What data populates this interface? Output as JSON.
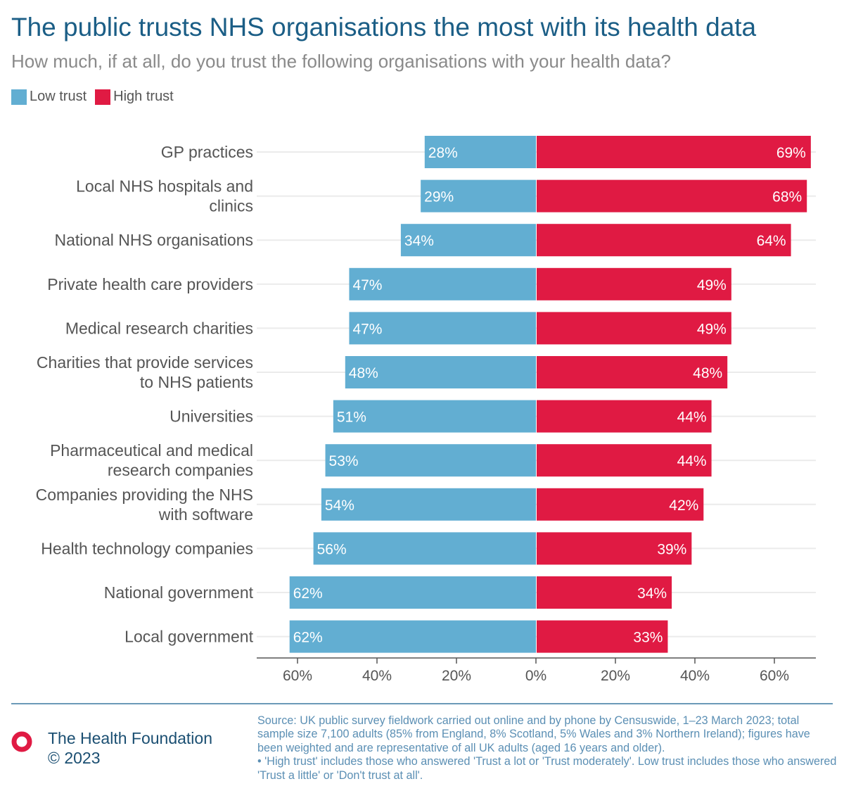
{
  "header": {
    "title": "The public trusts NHS organisations the most with its health data",
    "subtitle": "How much, if at all, do you trust the following organisations with your health data?"
  },
  "legend": {
    "low_label": "Low trust",
    "high_label": "High trust"
  },
  "colors": {
    "low": "#62aed2",
    "high": "#e01a43",
    "title": "#1b5e86",
    "source": "#5b8fb4"
  },
  "chart_data": {
    "type": "bar",
    "orientation": "horizontal-diverging",
    "title": "The public trusts NHS organisations the most with its health data",
    "subtitle": "How much, if at all, do you trust the following organisations with your health data?",
    "categories": [
      [
        "GP practices"
      ],
      [
        "Local NHS hospitals and",
        "clinics"
      ],
      [
        "National NHS organisations"
      ],
      [
        "Private health care providers"
      ],
      [
        "Medical research charities"
      ],
      [
        "Charities that provide services",
        "to NHS patients"
      ],
      [
        "Universities"
      ],
      [
        "Pharmaceutical and medical",
        "research companies"
      ],
      [
        "Companies providing the NHS",
        "with software"
      ],
      [
        "Health technology companies"
      ],
      [
        "National government"
      ],
      [
        "Local government"
      ]
    ],
    "series": [
      {
        "name": "Low trust",
        "values": [
          28,
          29,
          34,
          47,
          47,
          48,
          51,
          53,
          54,
          56,
          62,
          62
        ]
      },
      {
        "name": "High trust",
        "values": [
          69,
          68,
          64,
          49,
          49,
          48,
          44,
          44,
          42,
          39,
          34,
          33
        ]
      }
    ],
    "xlim": [
      -70,
      70
    ],
    "x_ticks": [
      -60,
      -40,
      -20,
      0,
      20,
      40,
      60
    ],
    "x_tick_labels": [
      "60%",
      "40%",
      "20%",
      "0%",
      "20%",
      "40%",
      "60%"
    ],
    "value_suffix": "%",
    "grid": true,
    "legend_position": "top-left"
  },
  "footer": {
    "org": "The Health Foundation",
    "copyright": "© 2023",
    "source": "Source: UK public survey fieldwork carried out online and by phone by Censuswide, 1–23 March 2023; total sample size 7,100 adults (85% from England, 8% Scotland, 5% Wales and 3% Northern Ireland); figures have been weighted and are representative of all UK adults (aged 16 years and older).",
    "note": "• 'High trust' includes those who answered 'Trust a lot or 'Trust moderately'. Low trust includes those who answered 'Trust a little' or 'Don't trust at all'."
  }
}
